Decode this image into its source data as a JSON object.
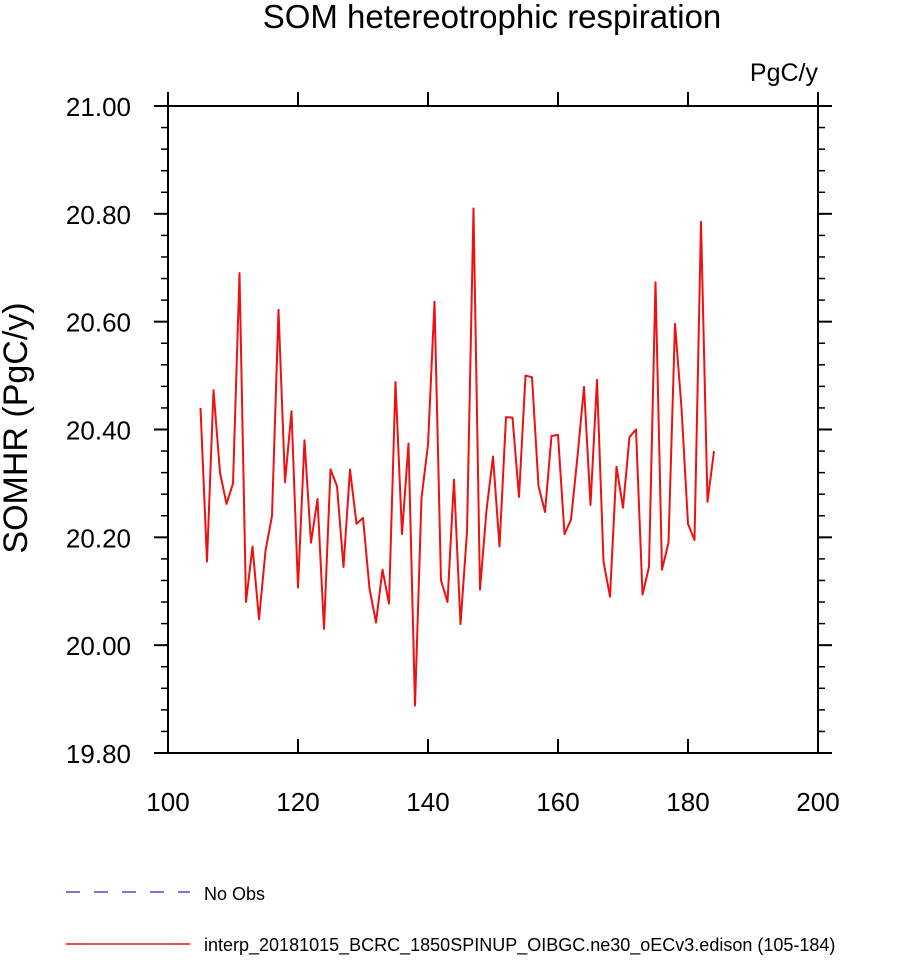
{
  "chart_data": {
    "type": "line",
    "title": "SOM hetereotrophic respiration",
    "units": "PgC/y",
    "ylabel": "SOMHR  (PgC/y)",
    "xlabel": "",
    "xlim": [
      100,
      200
    ],
    "ylim": [
      19.8,
      21.0
    ],
    "x_ticks": [
      100,
      120,
      140,
      160,
      180,
      200
    ],
    "x_tick_labels": [
      "100",
      "120",
      "140",
      "160",
      "180",
      "200"
    ],
    "y_ticks": [
      19.8,
      20.0,
      20.2,
      20.4,
      20.6,
      20.8,
      21.0
    ],
    "y_tick_labels": [
      "19.80",
      "20.00",
      "20.20",
      "20.40",
      "20.60",
      "20.80",
      "21.00"
    ],
    "legend_position": "bottom-left",
    "series": [
      {
        "name": "No Obs",
        "style": "dashed",
        "color": "#4a4ad8",
        "x": [],
        "values": []
      },
      {
        "name": "interp_20181015_BCRC_1850SPINUP_OIBGC.ne30_oECv3.edison (105-184)",
        "style": "solid",
        "color": "#ee1111",
        "x": [
          105,
          106,
          107,
          108,
          109,
          110,
          111,
          112,
          113,
          114,
          115,
          116,
          117,
          118,
          119,
          120,
          121,
          122,
          123,
          124,
          125,
          126,
          127,
          128,
          129,
          130,
          131,
          132,
          133,
          134,
          135,
          136,
          137,
          138,
          139,
          140,
          141,
          142,
          143,
          144,
          145,
          146,
          147,
          148,
          149,
          150,
          151,
          152,
          153,
          154,
          155,
          156,
          157,
          158,
          159,
          160,
          161,
          162,
          163,
          164,
          165,
          166,
          167,
          168,
          169,
          170,
          171,
          172,
          173,
          174,
          175,
          176,
          177,
          178,
          179,
          180,
          181,
          182,
          183,
          184
        ],
        "values": [
          20.44,
          20.155,
          20.473,
          20.32,
          20.262,
          20.3,
          20.69,
          20.08,
          20.183,
          20.048,
          20.175,
          20.24,
          20.622,
          20.302,
          20.434,
          20.107,
          20.38,
          20.19,
          20.271,
          20.03,
          20.326,
          20.295,
          20.145,
          20.326,
          20.225,
          20.236,
          20.105,
          20.042,
          20.14,
          20.077,
          20.488,
          20.206,
          20.374,
          19.888,
          20.273,
          20.372,
          20.637,
          20.12,
          20.08,
          20.307,
          20.039,
          20.21,
          20.81,
          20.103,
          20.25,
          20.35,
          20.183,
          20.423,
          20.422,
          20.275,
          20.5,
          20.497,
          20.295,
          20.247,
          20.388,
          20.39,
          20.206,
          20.233,
          20.35,
          20.479,
          20.26,
          20.492,
          20.155,
          20.09,
          20.331,
          20.255,
          20.386,
          20.4,
          20.094,
          20.145,
          20.673,
          20.14,
          20.19,
          20.596,
          20.44,
          20.225,
          20.195,
          20.785,
          20.266,
          20.36
        ]
      }
    ]
  }
}
